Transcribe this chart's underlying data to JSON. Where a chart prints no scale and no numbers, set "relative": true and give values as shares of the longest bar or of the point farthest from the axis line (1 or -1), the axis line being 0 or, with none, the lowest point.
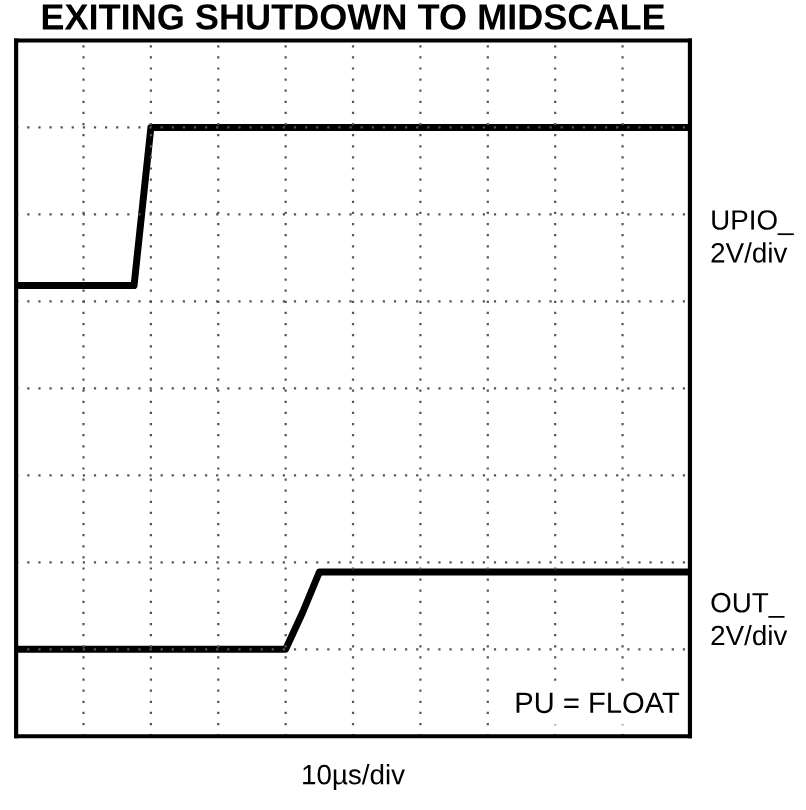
{
  "chart_data": {
    "type": "line",
    "title": "EXITING SHUTDOWN TO MIDSCALE",
    "xlabel": "10µs/div",
    "relative": true,
    "grid": true,
    "categories": [
      null,
      null,
      null,
      null,
      null,
      null,
      null,
      null,
      null,
      null,
      null,
      null,
      null,
      null,
      null,
      null,
      null,
      null,
      null,
      null,
      null,
      null,
      null,
      null,
      null,
      null,
      null,
      null,
      null,
      null,
      null,
      null,
      null,
      null,
      null,
      null,
      null,
      null,
      null,
      null,
      null
    ],
    "series": [
      {
        "name": "UPIO_",
        "color": "#000000",
        "values": [
          0.697,
          0.697,
          0.697,
          0.697,
          0.697,
          0.697,
          0.697,
          0.697,
          1,
          1,
          1,
          1,
          1,
          1,
          1,
          1,
          1,
          1,
          1,
          1,
          1,
          1,
          1,
          1,
          1,
          1,
          1,
          1,
          1,
          1,
          1,
          1,
          1,
          1,
          1,
          1,
          1,
          1,
          1,
          1,
          1
        ]
      },
      {
        "name": "OUT_",
        "color": "#000000",
        "values": [
          0,
          0,
          0,
          0,
          0,
          0,
          0,
          0,
          0,
          0,
          0,
          0,
          0,
          0,
          0,
          0,
          0,
          0.07,
          0.148,
          0.148,
          0.148,
          0.148,
          0.148,
          0.148,
          0.148,
          0.148,
          0.148,
          0.148,
          0.148,
          0.148,
          0.148,
          0.148,
          0.148,
          0.148,
          0.148,
          0.148,
          0.148,
          0.148,
          0.148,
          0.148,
          0.148
        ]
      }
    ],
    "annotations": [
      "2V/div",
      "2V/div",
      "PU = FLOAT"
    ]
  }
}
